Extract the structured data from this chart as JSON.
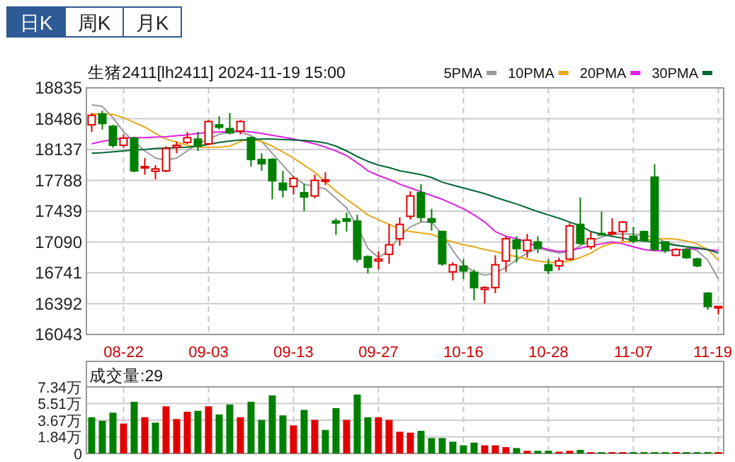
{
  "chart_data": [
    {
      "type": "candlestick",
      "title": "生猪2411[lh2411] 2024-11-19 15:00",
      "annotations": [
        "日K",
        "周K",
        "月K"
      ],
      "categories": [
        null,
        null,
        null,
        "08-22",
        null,
        null,
        null,
        null,
        null,
        null,
        null,
        "09-03",
        null,
        null,
        null,
        null,
        null,
        null,
        null,
        "09-13",
        null,
        null,
        null,
        null,
        null,
        null,
        null,
        "09-27",
        null,
        null,
        null,
        null,
        null,
        null,
        null,
        "10-16",
        null,
        null,
        null,
        null,
        null,
        null,
        null,
        "10-28",
        null,
        null,
        null,
        null,
        null,
        null,
        null,
        "11-07",
        null,
        null,
        null,
        null,
        null,
        null,
        null,
        "11-19"
      ],
      "ohlc": [
        [
          18416,
          18550,
          18336,
          18524
        ],
        [
          18540,
          18577,
          18362,
          18432
        ],
        [
          18400,
          18416,
          18158,
          18185
        ],
        [
          18185,
          18309,
          18158,
          18266
        ],
        [
          18266,
          18282,
          17879,
          17895
        ],
        [
          17933,
          18040,
          17852,
          17944
        ],
        [
          17890,
          17960,
          17799,
          17917
        ],
        [
          17895,
          18174,
          17879,
          18148
        ],
        [
          18164,
          18228,
          18094,
          18185
        ],
        [
          18217,
          18336,
          18201,
          18271
        ],
        [
          18255,
          18336,
          18121,
          18174
        ],
        [
          18201,
          18470,
          18185,
          18454
        ],
        [
          18416,
          18513,
          18362,
          18389
        ],
        [
          18373,
          18550,
          18309,
          18325
        ],
        [
          18346,
          18470,
          18309,
          18454
        ],
        [
          18271,
          18282,
          17944,
          18024
        ],
        [
          18024,
          18094,
          17895,
          17976
        ],
        [
          18024,
          18040,
          17573,
          17783
        ],
        [
          17756,
          17895,
          17594,
          17680
        ],
        [
          17718,
          17841,
          17627,
          17809
        ],
        [
          17648,
          17745,
          17439,
          17600
        ],
        [
          17611,
          17852,
          17584,
          17788
        ],
        [
          17777,
          17879,
          17734,
          17793
        ],
        [
          17326,
          17358,
          17170,
          17305
        ],
        [
          17353,
          17423,
          17208,
          17326
        ],
        [
          17326,
          17396,
          16859,
          16896
        ],
        [
          16923,
          16939,
          16735,
          16805
        ],
        [
          16875,
          16982,
          16778,
          16896
        ],
        [
          16950,
          17289,
          16843,
          17058
        ],
        [
          17127,
          17369,
          17047,
          17289
        ],
        [
          17380,
          17664,
          17342,
          17611
        ],
        [
          17648,
          17745,
          17315,
          17369
        ],
        [
          17353,
          17466,
          17219,
          17315
        ],
        [
          17208,
          17219,
          16821,
          16843
        ],
        [
          16752,
          16859,
          16655,
          16832
        ],
        [
          16816,
          16896,
          16671,
          16762
        ],
        [
          16746,
          16778,
          16429,
          16574
        ],
        [
          16553,
          16590,
          16392,
          16574
        ],
        [
          16574,
          16939,
          16510,
          16832
        ],
        [
          16875,
          17154,
          16752,
          17127
        ],
        [
          17111,
          17154,
          16859,
          17015
        ],
        [
          16993,
          17181,
          16913,
          17111
        ],
        [
          17090,
          17154,
          16966,
          17020
        ],
        [
          16832,
          16896,
          16725,
          16768
        ],
        [
          16821,
          16913,
          16768,
          16875
        ],
        [
          16896,
          17305,
          16886,
          17272
        ],
        [
          17289,
          17594,
          17058,
          17074
        ],
        [
          17036,
          17208,
          17004,
          17127
        ],
        [
          17186,
          17434,
          17165,
          17170
        ],
        [
          17181,
          17358,
          17165,
          17197
        ],
        [
          17208,
          17326,
          17101,
          17315
        ],
        [
          17154,
          17262,
          17074,
          17101
        ],
        [
          17208,
          17219,
          17090,
          17111
        ],
        [
          17825,
          17970,
          16993,
          17004
        ],
        [
          17090,
          17101,
          16966,
          16993
        ],
        [
          16939,
          17020,
          16929,
          17004
        ],
        [
          17004,
          17020,
          16897,
          16913
        ],
        [
          16897,
          16913,
          16805,
          16821
        ],
        [
          16510,
          16521,
          16322,
          16359
        ],
        [
          16354,
          16359,
          16268,
          16359
        ]
      ],
      "colors": [
        "#e00000",
        "#008000",
        "#008000",
        "#e00000",
        "#008000",
        "#e00000",
        "#e00000",
        "#e00000",
        "#e00000",
        "#e00000",
        "#008000",
        "#e00000",
        "#008000",
        "#008000",
        "#e00000",
        "#008000",
        "#008000",
        "#008000",
        "#008000",
        "#e00000",
        "#008000",
        "#e00000",
        "#e00000",
        "#008000",
        "#008000",
        "#008000",
        "#008000",
        "#e00000",
        "#e00000",
        "#e00000",
        "#e00000",
        "#008000",
        "#008000",
        "#008000",
        "#e00000",
        "#008000",
        "#008000",
        "#e00000",
        "#e00000",
        "#e00000",
        "#008000",
        "#e00000",
        "#008000",
        "#008000",
        "#e00000",
        "#e00000",
        "#008000",
        "#e00000",
        "#008000",
        "#e00000",
        "#e00000",
        "#008000",
        "#008000",
        "#008000",
        "#008000",
        "#e00000",
        "#008000",
        "#008000",
        "#008000",
        "#e00000"
      ],
      "series": [
        {
          "type": "line",
          "name": "5PMA",
          "color": "#999999",
          "values": [
            18642,
            18626,
            18497,
            18336,
            18229,
            18121,
            18041,
            18014,
            18041,
            18121,
            18202,
            18255,
            18309,
            18336,
            18336,
            18293,
            18229,
            18094,
            17960,
            17826,
            17745,
            17718,
            17692,
            17584,
            17477,
            17262,
            17020,
            16913,
            16992,
            17155,
            17262,
            17316,
            17316,
            17181,
            16992,
            16832,
            16752,
            16714,
            16736,
            16805,
            16886,
            16965,
            17020,
            16992,
            16965,
            16981,
            17047,
            17101,
            17144,
            17181,
            17181,
            17181,
            17165,
            17144,
            17090,
            17058,
            17036,
            16992,
            16886,
            16671
          ]
        },
        {
          "type": "line",
          "name": "10PMA",
          "color": "#e6a817",
          "values": [
            18540,
            18540,
            18535,
            18497,
            18443,
            18390,
            18320,
            18255,
            18218,
            18186,
            18164,
            18164,
            18164,
            18175,
            18229,
            18255,
            18229,
            18175,
            18110,
            18041,
            17960,
            17880,
            17772,
            17665,
            17573,
            17488,
            17396,
            17342,
            17289,
            17235,
            17208,
            17192,
            17176,
            17128,
            17090,
            17058,
            17036,
            17004,
            16981,
            16950,
            16924,
            16897,
            16875,
            16859,
            16859,
            16875,
            16913,
            16965,
            17036,
            17074,
            17090,
            17101,
            17111,
            17122,
            17128,
            17122,
            17101,
            17069,
            17004,
            16886
          ]
        },
        {
          "type": "line",
          "name": "20PMA",
          "color": "#e020e0",
          "values": [
            18202,
            18229,
            18250,
            18266,
            18271,
            18271,
            18277,
            18282,
            18293,
            18304,
            18320,
            18331,
            18336,
            18341,
            18347,
            18336,
            18320,
            18298,
            18277,
            18255,
            18229,
            18202,
            18164,
            18121,
            18067,
            17987,
            17896,
            17842,
            17799,
            17745,
            17702,
            17659,
            17616,
            17573,
            17520,
            17466,
            17396,
            17316,
            17208,
            17155,
            17128,
            17090,
            17036,
            17004,
            16981,
            16992,
            17020,
            17047,
            17069,
            17090,
            17069,
            17036,
            17004,
            16992,
            16992,
            16998,
            17009,
            17015,
            17004,
            16992
          ]
        },
        {
          "type": "line",
          "name": "30PMA",
          "color": "#006633",
          "values": [
            18094,
            18100,
            18110,
            18121,
            18132,
            18137,
            18148,
            18153,
            18159,
            18164,
            18175,
            18196,
            18218,
            18234,
            18245,
            18250,
            18255,
            18255,
            18250,
            18245,
            18239,
            18229,
            18212,
            18175,
            18121,
            18057,
            18003,
            17960,
            17933,
            17896,
            17874,
            17853,
            17820,
            17767,
            17734,
            17702,
            17670,
            17638,
            17595,
            17557,
            17520,
            17477,
            17434,
            17396,
            17359,
            17316,
            17273,
            17208,
            17176,
            17155,
            17133,
            17111,
            17101,
            17090,
            17069,
            17052,
            17036,
            17026,
            17004,
            16965
          ]
        }
      ],
      "ylim": [
        16043,
        18835
      ],
      "yticks": [
        16043,
        16392,
        16741,
        17090,
        17439,
        17788,
        18137,
        18486,
        18835
      ],
      "grid": true,
      "legend": "top right"
    },
    {
      "type": "bar",
      "title": "成交量:29",
      "categories": [
        null,
        null,
        null,
        null,
        null,
        null,
        null,
        null,
        null,
        null,
        null,
        null,
        null,
        null,
        null,
        null,
        null,
        null,
        null,
        null,
        null,
        null,
        null,
        null,
        null,
        null,
        null,
        null,
        null,
        null,
        null,
        null,
        null,
        null,
        null,
        null,
        null,
        null,
        null,
        null,
        null,
        null,
        null,
        null,
        null,
        null,
        null,
        null,
        null,
        null,
        null,
        null,
        null,
        null,
        null,
        null,
        null,
        null,
        null,
        null
      ],
      "values": [
        4.0,
        3.6,
        4.5,
        3.3,
        5.7,
        4.0,
        3.4,
        5.2,
        3.8,
        4.6,
        4.7,
        5.2,
        4.3,
        5.4,
        4.0,
        5.7,
        3.7,
        6.4,
        4.2,
        3.1,
        4.8,
        3.7,
        2.6,
        5.0,
        3.7,
        6.5,
        4.0,
        4.0,
        3.7,
        2.4,
        2.3,
        2.5,
        1.7,
        1.7,
        1.3,
        0.9,
        1.2,
        0.9,
        0.9,
        0.7,
        0.6,
        0.3,
        0.3,
        0.3,
        0.2,
        0.3,
        0.4,
        0.15,
        0.15,
        0.15,
        0.15,
        0.15,
        0.15,
        0.15,
        0.15,
        0.15,
        0.15,
        0.15,
        0.15,
        0.15
      ],
      "colors": [
        "#008000",
        "#008000",
        "#008000",
        "#e00000",
        "#008000",
        "#e00000",
        "#008000",
        "#e00000",
        "#e00000",
        "#e00000",
        "#008000",
        "#e00000",
        "#008000",
        "#008000",
        "#e00000",
        "#008000",
        "#008000",
        "#008000",
        "#008000",
        "#e00000",
        "#008000",
        "#e00000",
        "#008000",
        "#008000",
        "#e00000",
        "#008000",
        "#008000",
        "#e00000",
        "#e00000",
        "#e00000",
        "#e00000",
        "#008000",
        "#008000",
        "#008000",
        "#008000",
        "#008000",
        "#008000",
        "#e00000",
        "#e00000",
        "#e00000",
        "#008000",
        "#e00000",
        "#008000",
        "#008000",
        "#e00000",
        "#e00000",
        "#008000",
        "#e00000",
        "#008000",
        "#e00000",
        "#e00000",
        "#008000",
        "#008000",
        "#008000",
        "#008000",
        "#e00000",
        "#008000",
        "#008000",
        "#008000",
        "#e00000"
      ],
      "ylim": [
        0,
        7.34
      ],
      "yticks": [
        0,
        {
          "value": 1.84,
          "label": "1.84万"
        },
        {
          "value": 3.67,
          "label": "3.67万"
        },
        {
          "value": 5.51,
          "label": "5.51万"
        },
        {
          "value": 7.34,
          "label": "7.34万"
        }
      ],
      "grid": true,
      "tick_labels": "y"
    }
  ]
}
